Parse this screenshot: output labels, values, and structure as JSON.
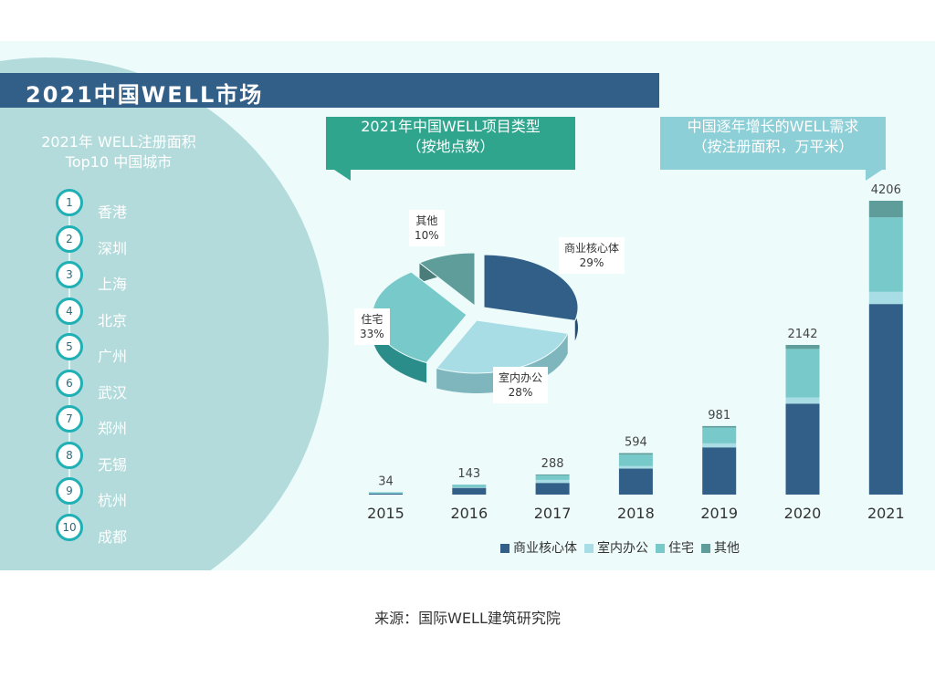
{
  "header": {
    "title": "2021中国WELL市场"
  },
  "ranking": {
    "title_line1": "2021年 WELL注册面积",
    "title_line2": "Top10 中国城市",
    "items": [
      {
        "rank": "1",
        "city": "香港"
      },
      {
        "rank": "2",
        "city": "深圳"
      },
      {
        "rank": "3",
        "city": "上海"
      },
      {
        "rank": "4",
        "city": "北京"
      },
      {
        "rank": "5",
        "city": "广州"
      },
      {
        "rank": "6",
        "city": "武汉"
      },
      {
        "rank": "7",
        "city": "郑州"
      },
      {
        "rank": "8",
        "city": "无锡"
      },
      {
        "rank": "9",
        "city": "杭州"
      },
      {
        "rank": "10",
        "city": "成都"
      }
    ]
  },
  "source": "来源：国际WELL建筑研究院",
  "colors": {
    "商业核心体": "#325f88",
    "室内办公": "#a8dde6",
    "住宅": "#78c9ca",
    "其他": "#5e9d9a"
  },
  "chart_data": [
    {
      "type": "pie",
      "title": "2021年中国WELL项目类型",
      "subtitle": "（按地点数）",
      "slices": [
        {
          "label": "商业核心体",
          "value": 29,
          "text": "29%"
        },
        {
          "label": "室内办公",
          "value": 28,
          "text": "28%"
        },
        {
          "label": "住宅",
          "value": 33,
          "text": "33%"
        },
        {
          "label": "其他",
          "value": 10,
          "text": "10%"
        }
      ]
    },
    {
      "type": "bar",
      "stacked": true,
      "title": "中国逐年增长的WELL需求",
      "subtitle": "（按注册面积，万平米）",
      "categories": [
        "2015",
        "2016",
        "2017",
        "2018",
        "2019",
        "2020",
        "2021"
      ],
      "totals": [
        34,
        143,
        288,
        594,
        981,
        2142,
        4206
      ],
      "series": [
        {
          "name": "商业核心体",
          "values": [
            14,
            96,
            167,
            372,
            676,
            1302,
            2728
          ]
        },
        {
          "name": "室内办公",
          "values": [
            0,
            8,
            43,
            35,
            57,
            87,
            174
          ]
        },
        {
          "name": "住宅",
          "values": [
            20,
            39,
            65,
            165,
            226,
            696,
            1066
          ]
        },
        {
          "name": "其他",
          "values": [
            0,
            0,
            13,
            22,
            22,
            57,
            238
          ]
        }
      ],
      "legend": "bottom",
      "ylim": [
        0,
        4206
      ]
    }
  ]
}
